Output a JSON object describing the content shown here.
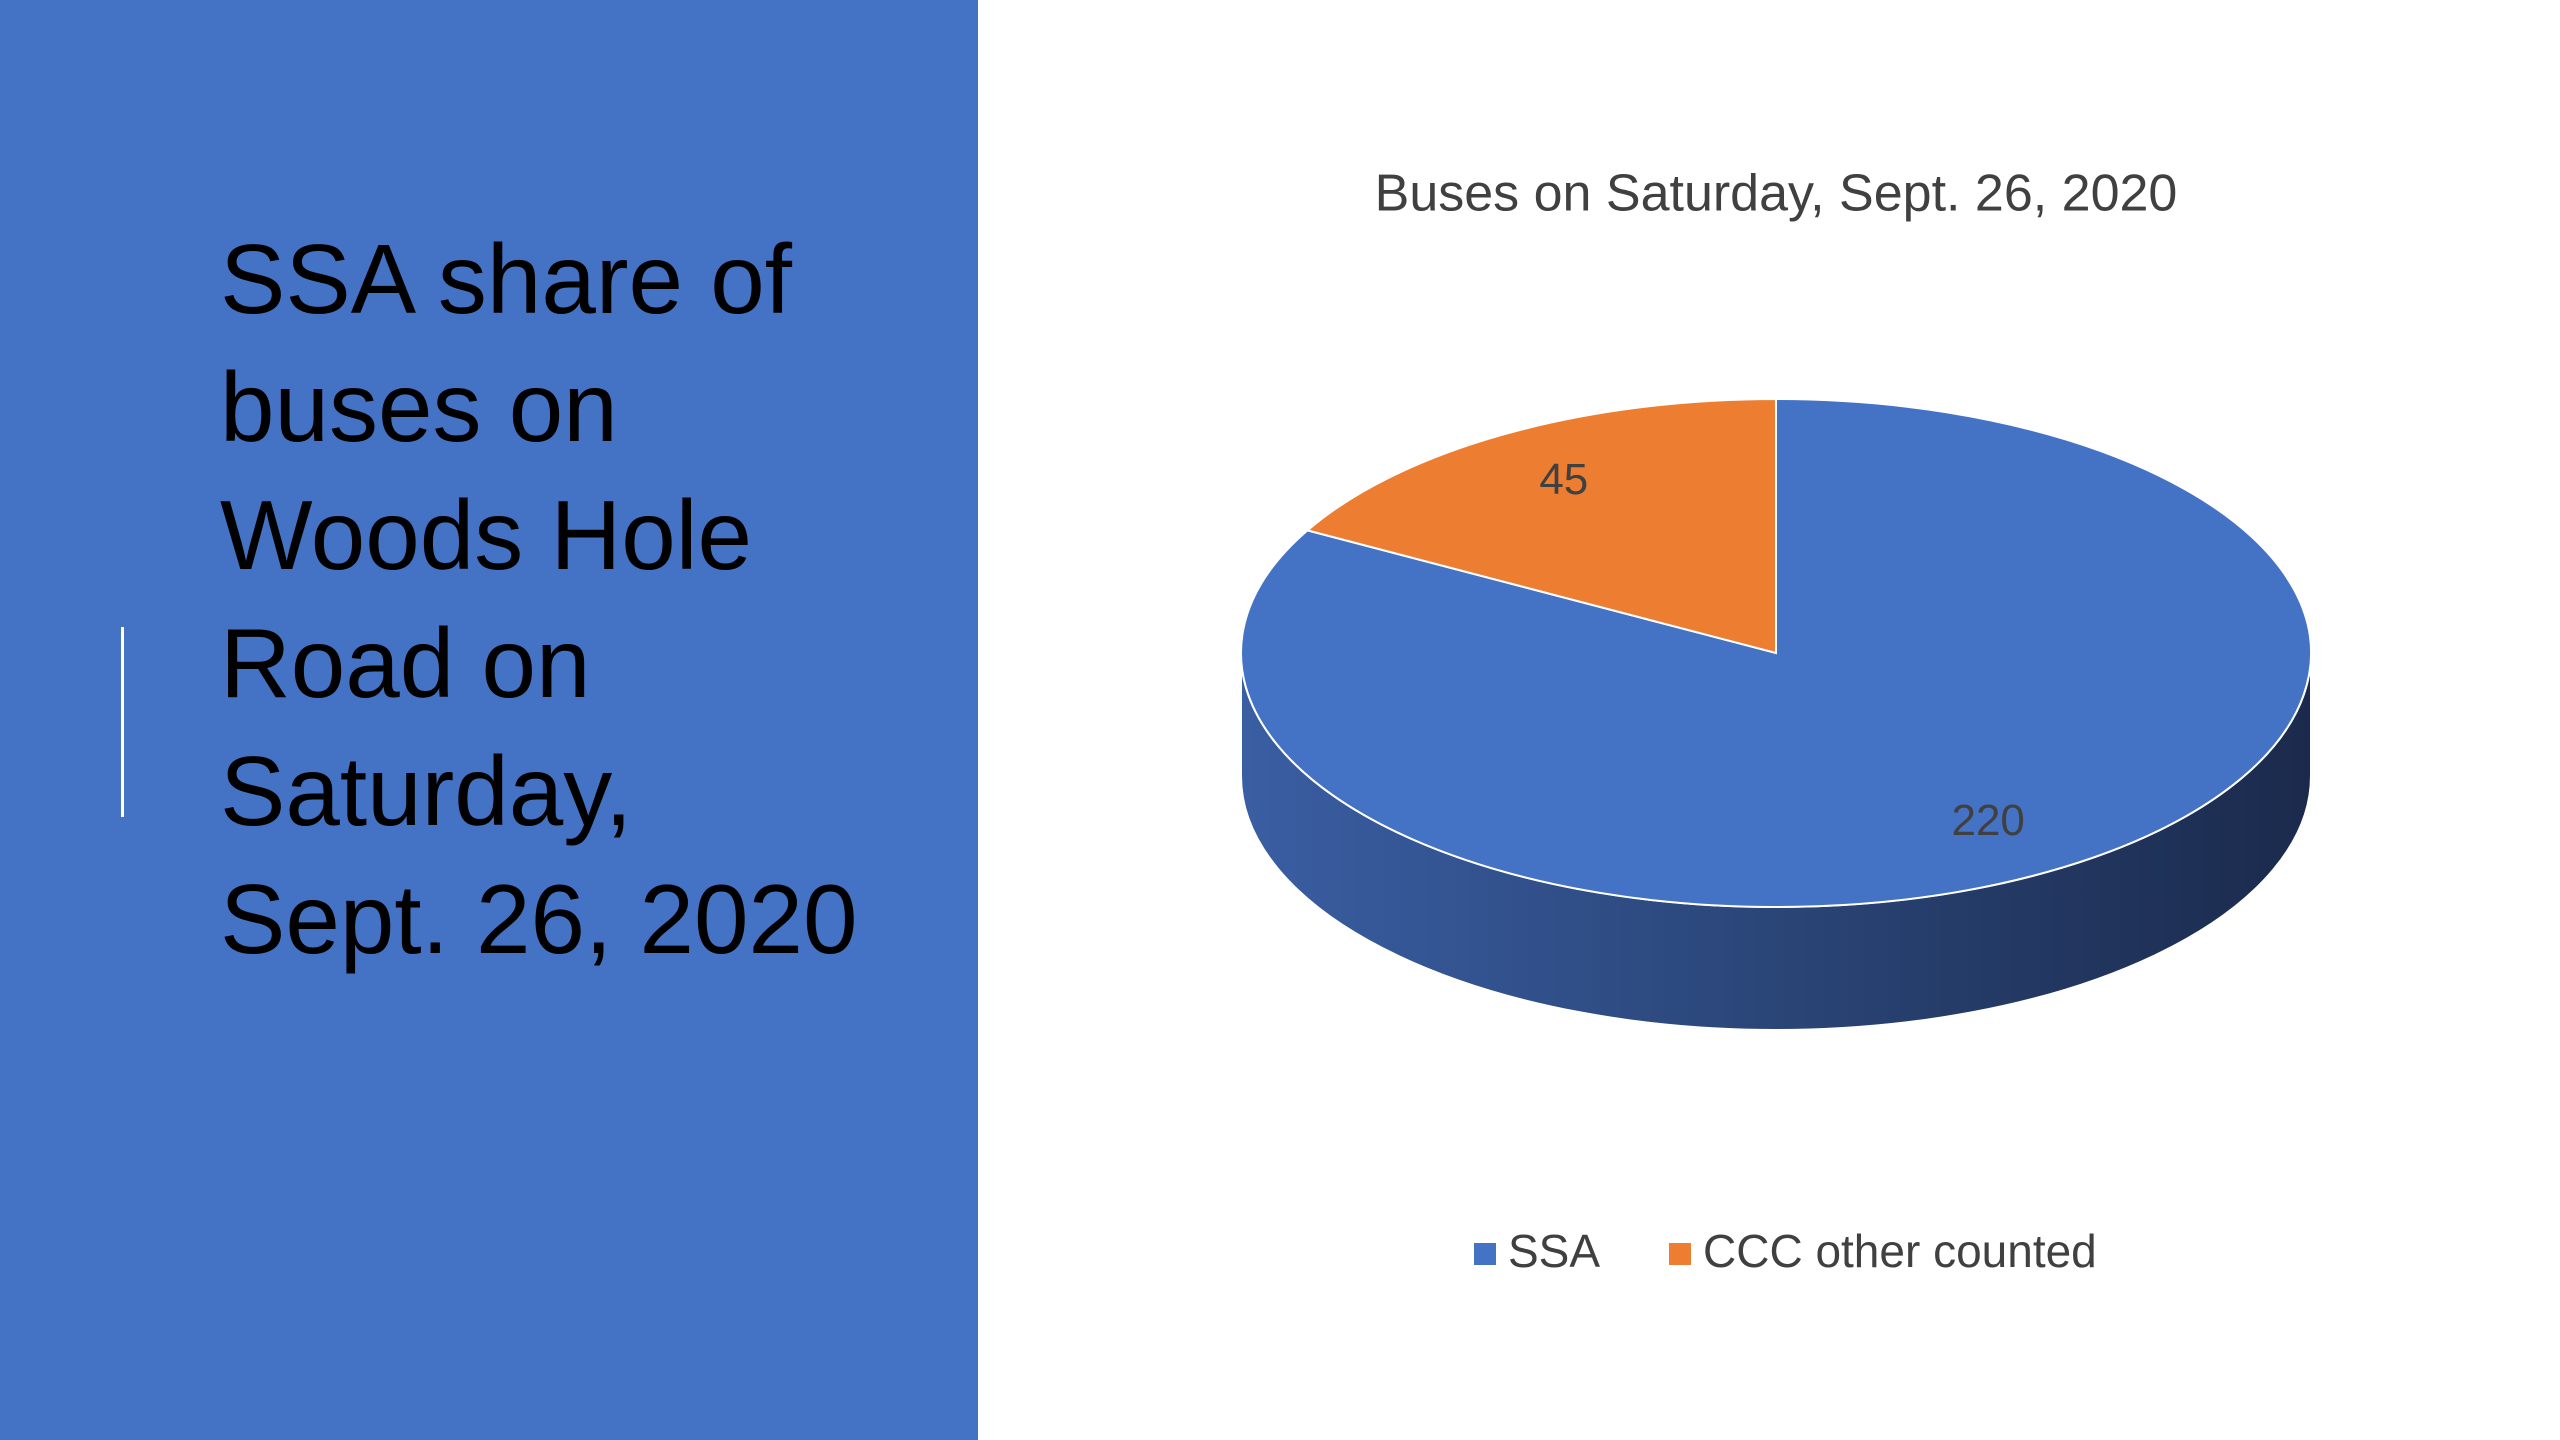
{
  "slide_title": "SSA share of buses on Woods Hole Road on Saturday, Sept. 26, 2020",
  "chart_data": {
    "type": "pie",
    "title": "Buses on Saturday, Sept. 26, 2020",
    "categories": [
      "SSA",
      "CCC other counted"
    ],
    "values": [
      220,
      45
    ],
    "colors": [
      "#4472c4",
      "#ed7d31"
    ],
    "legend": "bottom"
  }
}
